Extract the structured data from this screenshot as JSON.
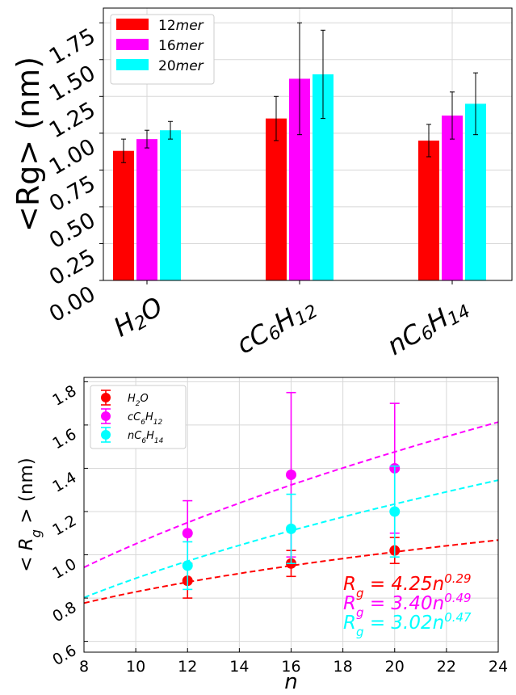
{
  "chart_data": [
    {
      "type": "bar",
      "ylabel": "<Rg> (nm)",
      "ylim": [
        0,
        1.85
      ],
      "yticks": [
        "0.00",
        "0.25",
        "0.50",
        "0.75",
        "1.00",
        "1.25",
        "1.50",
        "1.75"
      ],
      "grid": true,
      "legend_position": "top-left",
      "categories": [
        {
          "base": "H",
          "sub1": "2",
          "mid": "O",
          "sub2": ""
        },
        {
          "base": "cC",
          "sub1": "6",
          "mid": "H",
          "sub2": "12"
        },
        {
          "base": "nC",
          "sub1": "6",
          "mid": "H",
          "sub2": "14"
        }
      ],
      "series": [
        {
          "name_num": "12",
          "name_unit": "mer",
          "color": "#ff0000",
          "values": [
            0.88,
            1.1,
            0.95
          ],
          "errors": [
            0.08,
            0.15,
            0.11
          ]
        },
        {
          "name_num": "16",
          "name_unit": "mer",
          "color": "#ff00ff",
          "values": [
            0.96,
            1.37,
            1.12
          ],
          "errors": [
            0.06,
            0.38,
            0.16
          ]
        },
        {
          "name_num": "20",
          "name_unit": "mer",
          "color": "#00ffff",
          "values": [
            1.02,
            1.4,
            1.2
          ],
          "errors": [
            0.06,
            0.3,
            0.21
          ]
        }
      ]
    },
    {
      "type": "scatter",
      "xlabel": "n",
      "ylabel_prefix": "< R",
      "ylabel_sub": "g",
      "ylabel_suffix": " >  (nm)",
      "xlim": [
        8,
        24
      ],
      "ylim": [
        0.55,
        1.82
      ],
      "xticks": [
        "8",
        "10",
        "12",
        "14",
        "16",
        "18",
        "20",
        "22",
        "24"
      ],
      "yticks": [
        "0.6",
        "0.8",
        "1.0",
        "1.2",
        "1.4",
        "1.6",
        "1.8"
      ],
      "grid": true,
      "legend_position": "top-left",
      "series": [
        {
          "label": {
            "base": "H",
            "sub1": "2",
            "mid": "O",
            "sub2": ""
          },
          "color": "#ff0000",
          "x": [
            12,
            16,
            20
          ],
          "y": [
            0.88,
            0.96,
            1.02
          ],
          "errors": [
            0.08,
            0.06,
            0.06
          ],
          "fit": {
            "a": 4.25,
            "b": 0.29
          }
        },
        {
          "label": {
            "base": "cC",
            "sub1": "6",
            "mid": "H",
            "sub2": "12"
          },
          "color": "#ff00ff",
          "x": [
            12,
            16,
            20
          ],
          "y": [
            1.1,
            1.37,
            1.4
          ],
          "errors": [
            0.15,
            0.38,
            0.3
          ],
          "fit": {
            "a": 3.4,
            "b": 0.49
          }
        },
        {
          "label": {
            "base": "nC",
            "sub1": "6",
            "mid": "H",
            "sub2": "14"
          },
          "color": "#00ffff",
          "x": [
            12,
            16,
            20
          ],
          "y": [
            0.95,
            1.12,
            1.2
          ],
          "errors": [
            0.11,
            0.16,
            0.21
          ],
          "fit": {
            "a": 3.02,
            "b": 0.47
          }
        }
      ],
      "annotations": [
        {
          "prefix": "R",
          "sub": "g",
          "eq": " = 4.25n",
          "exp": "0.29",
          "color": "#ff0000"
        },
        {
          "prefix": "R",
          "sub": "g",
          "eq": " = 3.40n",
          "exp": "0.49",
          "color": "#ff00ff"
        },
        {
          "prefix": "R",
          "sub": "g",
          "eq": " = 3.02n",
          "exp": "0.47",
          "color": "#00ffff"
        }
      ]
    }
  ]
}
